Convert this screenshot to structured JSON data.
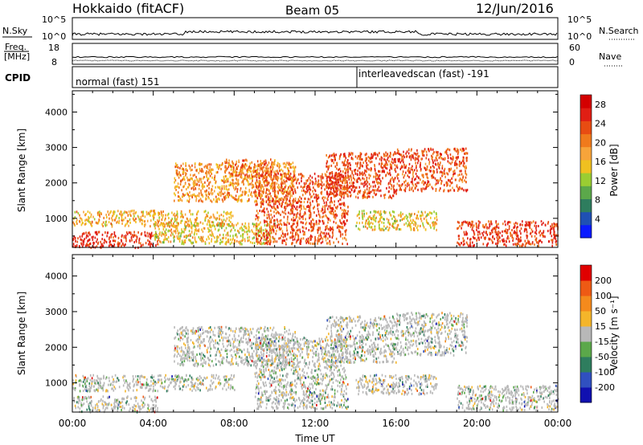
{
  "header": {
    "title": "Hokkaido (fitACF)",
    "beam": "Beam 05",
    "date": "12/Jun/2016"
  },
  "top_panels": {
    "nsky_label": "N.Sky",
    "nsky_ticks_left": [
      "10^5",
      "10^0"
    ],
    "nsky_ticks_right": [
      "10^5",
      "10^0"
    ],
    "nsearch_label": "N.Search",
    "freq_label_1": "Freq.",
    "freq_label_2": "[MHz]",
    "freq_ticks": [
      "18",
      "8"
    ],
    "nave_ticks": [
      "60",
      "0"
    ],
    "nave_label": "Nave",
    "cpid_label": "CPID",
    "cpid_mode_1": "normal (fast) 151",
    "cpid_mode_2": "interleavedscan (fast) -191"
  },
  "chart_data": [
    {
      "type": "heatmap",
      "name": "power",
      "ylabel": "Slant Range [km]",
      "xlabel": "",
      "x_range_hours": [
        0,
        24
      ],
      "ylim": [
        180,
        4600
      ],
      "y_ticks": [
        1000,
        2000,
        3000,
        4000
      ],
      "colorbar_label": "Power [dB]",
      "colorbar_ticks": [
        4,
        8,
        12,
        16,
        20,
        24,
        28
      ],
      "colorbar_colors": [
        "#0a1aff",
        "#1f50b4",
        "#2e7d5e",
        "#5ba84a",
        "#9acd32",
        "#f0c020",
        "#f7a43a",
        "#f07a1c",
        "#e84c12",
        "#e01e14",
        "#d40000"
      ],
      "echo_regions": [
        {
          "t0": 0.0,
          "t1": 4.2,
          "r0": 200,
          "r1": 650,
          "level": 0.95
        },
        {
          "t0": 0.0,
          "t1": 8.0,
          "r0": 800,
          "r1": 1250,
          "level": 0.55
        },
        {
          "t0": 4.0,
          "t1": 10.0,
          "r0": 300,
          "r1": 900,
          "level": 0.45
        },
        {
          "t0": 5.0,
          "t1": 11.0,
          "r0": 1500,
          "r1": 2600,
          "level": 0.6
        },
        {
          "t0": 9.0,
          "t1": 13.6,
          "r0": 300,
          "r1": 2300,
          "level": 0.8
        },
        {
          "t0": 12.5,
          "t1": 16.0,
          "r0": 1600,
          "r1": 2900,
          "level": 0.85
        },
        {
          "t0": 16.0,
          "t1": 19.5,
          "r0": 1800,
          "r1": 3000,
          "level": 0.8
        },
        {
          "t0": 14.0,
          "t1": 18.0,
          "r0": 700,
          "r1": 1250,
          "level": 0.45
        },
        {
          "t0": 19.0,
          "t1": 24.0,
          "r0": 250,
          "r1": 950,
          "level": 0.9
        },
        {
          "t0": 7.5,
          "t1": 10.0,
          "r0": 2200,
          "r1": 2700,
          "level": 0.7
        }
      ]
    },
    {
      "type": "heatmap",
      "name": "velocity",
      "ylabel": "Slant Range [km]",
      "xlabel": "Time UT",
      "x_range_hours": [
        0,
        24
      ],
      "x_ticks": [
        "00:00",
        "04:00",
        "08:00",
        "12:00",
        "16:00",
        "20:00",
        "00:00"
      ],
      "ylim": [
        180,
        4600
      ],
      "y_ticks": [
        1000,
        2000,
        3000,
        4000
      ],
      "colorbar_label": "Velocity [m s⁻¹]",
      "colorbar_ticks": [
        "200",
        "100",
        "50",
        "15",
        "-15",
        "-50",
        "-100",
        "-200"
      ],
      "colorbar_colors": [
        "#1010b0",
        "#3050c0",
        "#2e7d5e",
        "#5ba84a",
        "#b8b8b8",
        "#f4b52a",
        "#f48a1c",
        "#ee5a14",
        "#e00000"
      ],
      "echo_regions": [
        {
          "t0": 0.0,
          "t1": 4.2,
          "r0": 200,
          "r1": 650,
          "level": 0.5
        },
        {
          "t0": 0.0,
          "t1": 8.0,
          "r0": 800,
          "r1": 1250,
          "level": 0.5
        },
        {
          "t0": 5.0,
          "t1": 11.0,
          "r0": 1500,
          "r1": 2600,
          "level": 0.5
        },
        {
          "t0": 9.0,
          "t1": 13.6,
          "r0": 300,
          "r1": 2300,
          "level": 0.5
        },
        {
          "t0": 12.5,
          "t1": 16.0,
          "r0": 1600,
          "r1": 2900,
          "level": 0.5
        },
        {
          "t0": 16.0,
          "t1": 19.5,
          "r0": 1800,
          "r1": 3000,
          "level": 0.5
        },
        {
          "t0": 14.0,
          "t1": 18.0,
          "r0": 700,
          "r1": 1250,
          "level": 0.7
        },
        {
          "t0": 19.0,
          "t1": 24.0,
          "r0": 250,
          "r1": 950,
          "level": 0.5
        }
      ]
    }
  ]
}
